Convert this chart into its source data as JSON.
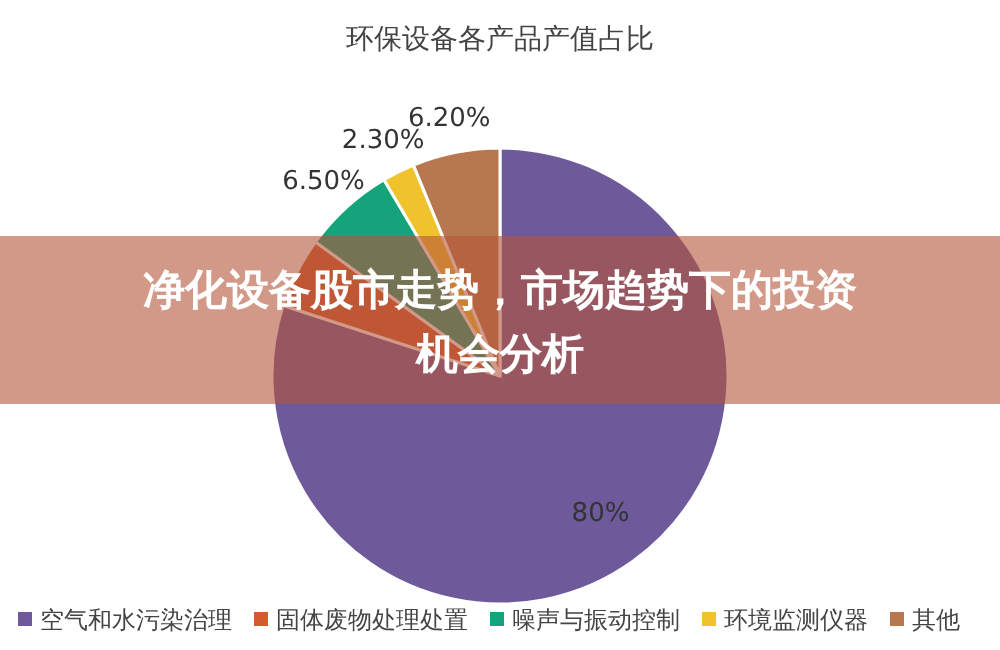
{
  "chart_data": {
    "type": "pie",
    "title": "环保设备各产品产值占比",
    "categories": [
      "空气和水污染治理",
      "固体废物处理处置",
      "噪声与振动控制",
      "环境监测仪器",
      "其他"
    ],
    "values": [
      80,
      5,
      6.5,
      2.3,
      6.2
    ],
    "colors": [
      "#6e5a9a",
      "#d25a2c",
      "#15a37c",
      "#f0c22c",
      "#b8784f"
    ],
    "value_labels": [
      "80%",
      null,
      "6.50%",
      "2.30%",
      "6.20%"
    ],
    "legend": "bottom",
    "annotations": [
      "净化设备股市走势，市场趋势下的投资机会分析"
    ]
  }
}
